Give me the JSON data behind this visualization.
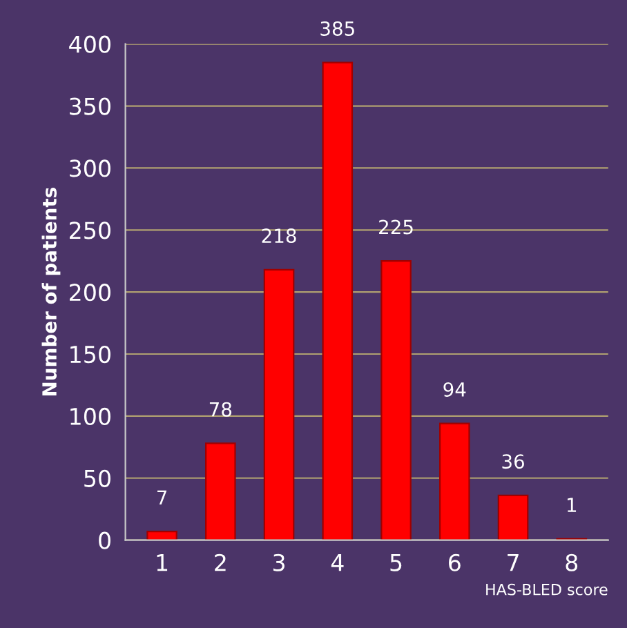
{
  "chart_data": {
    "type": "bar",
    "xlabel": "HAS-BLED score",
    "ylabel": "Number of patients",
    "categories": [
      "1",
      "2",
      "3",
      "4",
      "5",
      "6",
      "7",
      "8"
    ],
    "values": [
      7,
      78,
      218,
      385,
      225,
      94,
      36,
      1
    ],
    "color": "#ff0000",
    "ylim": [
      0,
      400
    ],
    "yticks": [
      0,
      50,
      100,
      150,
      200,
      250,
      300,
      350,
      400
    ],
    "grid": "y",
    "data_labels": true,
    "legend": false
  }
}
